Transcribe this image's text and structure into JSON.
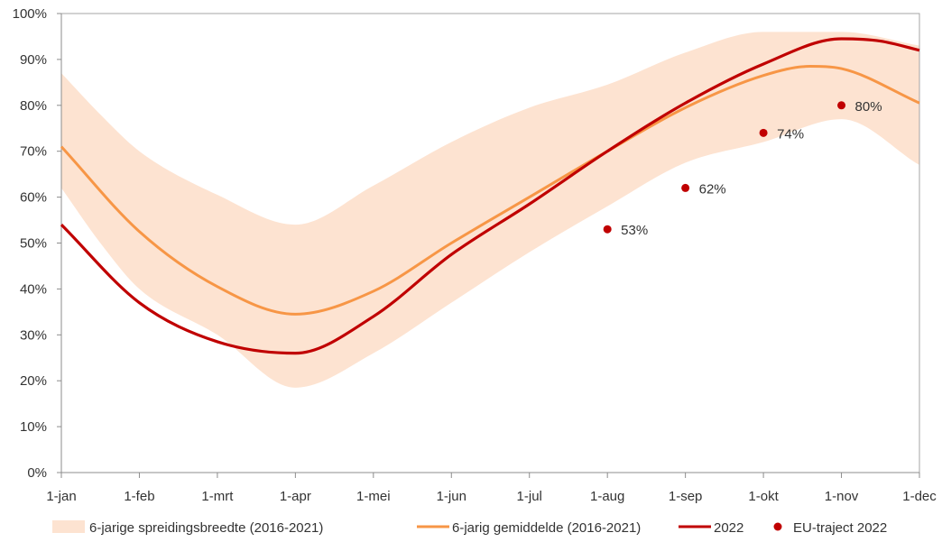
{
  "chart_data": {
    "type": "line",
    "title": "",
    "xlabel": "",
    "ylabel": "",
    "categories": [
      "1-jan",
      "1-feb",
      "1-mrt",
      "1-apr",
      "1-mei",
      "1-jun",
      "1-jul",
      "1-aug",
      "1-sep",
      "1-okt",
      "1-nov",
      "1-dec"
    ],
    "ylim": [
      0,
      100
    ],
    "yticks": [
      "0%",
      "10%",
      "20%",
      "30%",
      "40%",
      "50%",
      "60%",
      "70%",
      "80%",
      "90%",
      "100%"
    ],
    "grid": false,
    "legend_position": "bottom",
    "series": [
      {
        "name": "6-jarige spreidingsbreedte (2016-2021)",
        "kind": "band",
        "color": "#fde3d1",
        "x": [
          0,
          0.5,
          1,
          2,
          3,
          4,
          5,
          6,
          7,
          8,
          9,
          10,
          11
        ],
        "low": [
          62,
          50,
          40,
          30,
          18.5,
          26,
          37,
          48,
          58,
          67.5,
          72,
          77,
          67
        ],
        "high": [
          87,
          78,
          70,
          60.5,
          54,
          62.5,
          72,
          79.5,
          84.5,
          91.5,
          96,
          96,
          93
        ]
      },
      {
        "name": "6-jarig gemiddelde (2016-2021)",
        "kind": "line",
        "color": "#f79646",
        "x": [
          0,
          1,
          2,
          3,
          4,
          5,
          6,
          7,
          8,
          9,
          9.6,
          10,
          11
        ],
        "values": [
          71,
          52.5,
          40.5,
          34.5,
          39.5,
          50,
          60,
          70,
          79.5,
          86.5,
          88.5,
          88,
          80.5
        ]
      },
      {
        "name": "2022",
        "kind": "line",
        "color": "#c00000",
        "x": [
          0,
          1,
          2,
          3,
          4,
          5,
          6,
          7,
          8,
          9,
          10,
          10.5,
          11
        ],
        "values": [
          54,
          37,
          28.5,
          26,
          34,
          47.5,
          58.5,
          70,
          80.5,
          89,
          94.5,
          94,
          92
        ]
      },
      {
        "name": "EU-traject 2022",
        "kind": "scatter",
        "color": "#c00000",
        "x": [
          7,
          8,
          9,
          10
        ],
        "values": [
          53,
          62,
          74,
          80
        ],
        "labels": [
          "53%",
          "62%",
          "74%",
          "80%"
        ]
      }
    ]
  }
}
